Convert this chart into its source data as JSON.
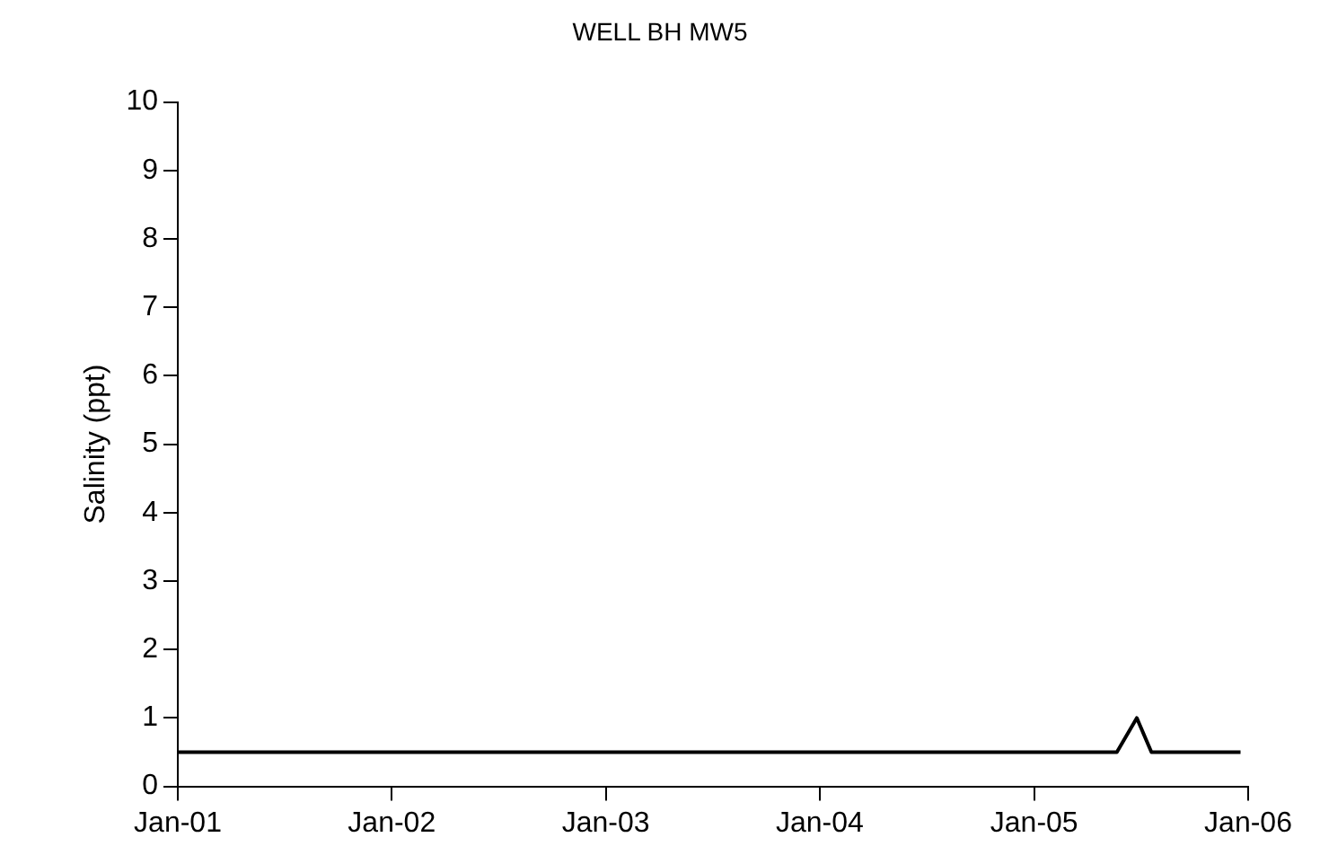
{
  "chart_data": {
    "type": "line",
    "title": "WELL BH MW5",
    "ylabel": "Salinity (ppt)",
    "x": [
      "2001-01-01",
      "2005-05-22",
      "2005-06-25",
      "2005-07-20",
      "2005-12-19"
    ],
    "series": [
      {
        "color": "#000000",
        "values": [
          0.5,
          0.5,
          1,
          0.5,
          0.5
        ]
      }
    ],
    "xlim": [
      "2001-01-01",
      "2006-01-01"
    ],
    "xticks": [
      {
        "value": "2001-01-01",
        "label": "Jan-01"
      },
      {
        "value": "2002-01-01",
        "label": "Jan-02"
      },
      {
        "value": "2003-01-01",
        "label": "Jan-03"
      },
      {
        "value": "2004-01-01",
        "label": "Jan-04"
      },
      {
        "value": "2005-01-01",
        "label": "Jan-05"
      },
      {
        "value": "2006-01-01",
        "label": "Jan-06"
      }
    ],
    "ylim": [
      0,
      10
    ],
    "yticks": [
      0,
      1,
      2,
      3,
      4,
      5,
      6,
      7,
      8,
      9,
      10
    ],
    "grid": false,
    "legend": false,
    "marker": "none",
    "line_style": "solid"
  }
}
